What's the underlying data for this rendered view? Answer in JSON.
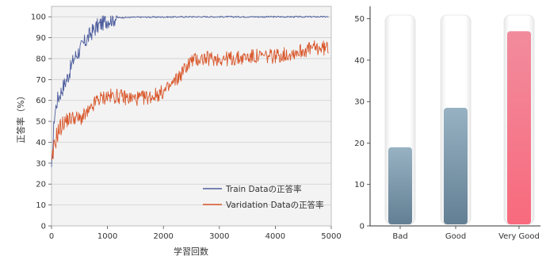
{
  "chart_data": [
    {
      "type": "line",
      "xlabel": "学習回数",
      "ylabel": "正答率（%）",
      "xlim": [
        0,
        5000
      ],
      "ylim": [
        0,
        105
      ],
      "x_ticks": [
        "0",
        "1000",
        "2000",
        "3000",
        "4000",
        "5000"
      ],
      "y_ticks": [
        "0",
        "10",
        "20",
        "30",
        "40",
        "50",
        "60",
        "70",
        "80",
        "90",
        "100"
      ],
      "grid": true,
      "legend": "bottom-right",
      "series": [
        {
          "name": "Train Dataの正答率",
          "color": "#4e5e9e",
          "x": [
            0,
            50,
            100,
            200,
            300,
            400,
            500,
            600,
            700,
            800,
            900,
            1000,
            1100,
            1200,
            1500,
            2000,
            2500,
            3000,
            3500,
            4000,
            4500,
            4950
          ],
          "y": [
            25,
            52,
            60,
            66,
            72,
            80,
            84,
            88,
            92,
            95,
            97,
            98.5,
            99.2,
            99.6,
            99.8,
            99.9,
            100,
            100,
            100,
            100,
            100,
            100
          ]
        },
        {
          "name": "Varidation Dataの正答率",
          "color": "#d9572b",
          "x": [
            0,
            50,
            100,
            200,
            300,
            400,
            500,
            600,
            700,
            800,
            900,
            1000,
            1200,
            1400,
            1600,
            1800,
            2000,
            2100,
            2200,
            2300,
            2400,
            2500,
            2700,
            3000,
            3300,
            3600,
            3900,
            4200,
            4500,
            4700,
            4950
          ],
          "y": [
            28,
            38,
            44,
            49,
            51,
            52,
            51,
            53,
            55,
            60,
            61,
            62,
            62,
            61,
            61,
            62,
            64,
            66,
            69,
            72,
            76,
            79,
            80,
            80,
            80,
            81,
            81,
            82,
            84,
            85,
            85
          ]
        }
      ]
    },
    {
      "type": "bar",
      "categories": [
        "Bad",
        "Good",
        "Very Good"
      ],
      "values": [
        19,
        28.5,
        47
      ],
      "ylim": [
        0,
        53
      ],
      "y_ticks": [
        "0",
        "10",
        "20",
        "30",
        "40",
        "50"
      ],
      "grid": false,
      "colors": [
        "#6a8ba2",
        "#6a8ba2",
        "#f27a8c"
      ]
    }
  ]
}
